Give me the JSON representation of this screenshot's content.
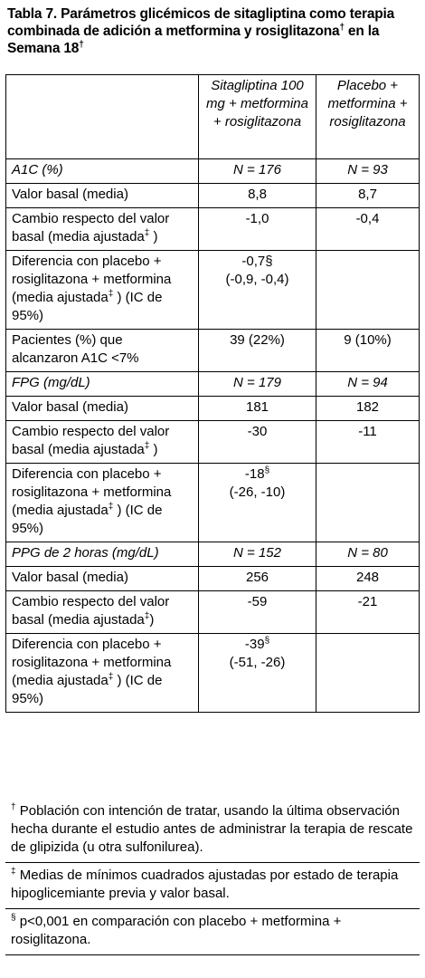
{
  "title": {
    "text": "Tabla 7. Parámetros glicémicos de sitagliptina como terapia combinada de adición a metformina y rosiglitazona",
    "mark": "†",
    "text2": " en la Semana 18",
    "mark2": "†"
  },
  "header": {
    "col1": "",
    "col2": "Sitagliptina 100 mg + metformina + rosiglitazona",
    "col3": "Placebo + metformina + rosiglitazona"
  },
  "sections": [
    {
      "label": "A1C (%)",
      "n2": "N = 176",
      "n3": "N = 93",
      "rows": [
        {
          "label": "Valor basal (media)",
          "sup": "",
          "tail": "",
          "v2": "8,8",
          "v2sup": "",
          "v2b": "",
          "v3": "8,7"
        },
        {
          "label": "Cambio respecto del valor basal (media ajustada",
          "sup": "‡",
          "tail": " )",
          "v2": "-1,0",
          "v2sup": "",
          "v2b": "",
          "v3": "-0,4"
        },
        {
          "label": "Diferencia con placebo + rosiglitazona + metformina (media ajustada",
          "sup": "‡",
          "tail": " ) (IC de 95%)",
          "v2": "-0,7§",
          "v2sup": "",
          "v2b": "(-0,9, -0,4)",
          "v3": ""
        },
        {
          "label": "Pacientes (%) que alcanzaron A1C <7%",
          "sup": "",
          "tail": "",
          "v2": "39 (22%)",
          "v2sup": "",
          "v2b": "",
          "v3": "9 (10%)"
        }
      ]
    },
    {
      "label": "FPG (mg/dL)",
      "n2": "N = 179",
      "n3": "N = 94",
      "rows": [
        {
          "label": "Valor basal (media)",
          "sup": "",
          "tail": "",
          "v2": "181",
          "v2sup": "",
          "v2b": "",
          "v3": "182"
        },
        {
          "label": "Cambio respecto del valor basal (media ajustada",
          "sup": "‡",
          "tail": " )",
          "v2": "-30",
          "v2sup": "",
          "v2b": "",
          "v3": "-11"
        },
        {
          "label": "Diferencia con placebo + rosiglitazona + metformina (media ajustada",
          "sup": "‡",
          "tail": " ) (IC de 95%)",
          "v2": "-18",
          "v2sup": "§",
          "v2b": "(-26, -10)",
          "v3": ""
        }
      ]
    },
    {
      "label": "PPG de 2 horas (mg/dL)",
      "n2": "N = 152",
      "n3": "N = 80",
      "rows": [
        {
          "label": "Valor basal (media)",
          "sup": "",
          "tail": "",
          "v2": "256",
          "v2sup": "",
          "v2b": "",
          "v3": "248"
        },
        {
          "label": "Cambio respecto del valor basal (media ajustada",
          "sup": "‡",
          "tail": ")",
          "v2": "-59",
          "v2sup": "",
          "v2b": "",
          "v3": "-21"
        },
        {
          "label": "Diferencia con placebo + rosiglitazona + metformina (media ajustada",
          "sup": "‡",
          "tail": " ) (IC de 95%)",
          "v2": "-39",
          "v2sup": "§",
          "v2b": "(-51, -26)",
          "v3": ""
        }
      ]
    }
  ],
  "footnotes": [
    {
      "mark": "†",
      "text": " Población con intención de tratar, usando la última observación hecha durante el estudio antes de administrar la terapia de rescate de glipizida (u otra sulfonilurea)."
    },
    {
      "mark": "‡",
      "text": " Medias de mínimos cuadrados ajustadas por estado de terapia hipoglicemiante previa y valor basal."
    },
    {
      "mark": "§",
      "text": " p<0,001 en comparación con placebo + metformina + rosiglitazona."
    }
  ]
}
